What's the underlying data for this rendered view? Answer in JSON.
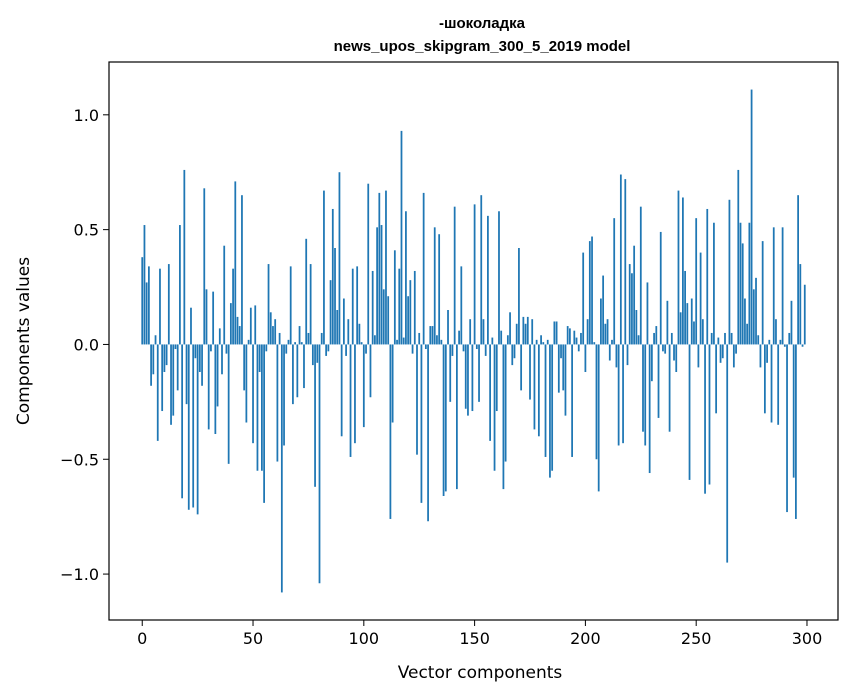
{
  "chart_data": {
    "type": "bar",
    "title": "-шоколадка",
    "subtitle": "news_upos_skipgram_300_5_2019 model",
    "xlabel": "Vector components",
    "ylabel": "Components values",
    "xlim": [
      -15,
      314
    ],
    "ylim": [
      -1.2,
      1.23
    ],
    "xticks": [
      0,
      50,
      100,
      150,
      200,
      250,
      300
    ],
    "xtick_labels": [
      "0",
      "50",
      "100",
      "150",
      "200",
      "250",
      "300"
    ],
    "yticks": [
      -1.0,
      -0.5,
      0.0,
      0.5,
      1.0
    ],
    "ytick_labels": [
      "−1.0",
      "−0.5",
      "0.0",
      "0.5",
      "1.0"
    ],
    "grid": false,
    "bar_color": "#1f77b4",
    "x": [
      0,
      1,
      2,
      3,
      4,
      5,
      6,
      7,
      8,
      9,
      10,
      11,
      12,
      13,
      14,
      15,
      16,
      17,
      18,
      19,
      20,
      21,
      22,
      23,
      24,
      25,
      26,
      27,
      28,
      29,
      30,
      31,
      32,
      33,
      34,
      35,
      36,
      37,
      38,
      39,
      40,
      41,
      42,
      43,
      44,
      45,
      46,
      47,
      48,
      49,
      50,
      51,
      52,
      53,
      54,
      55,
      56,
      57,
      58,
      59,
      60,
      61,
      62,
      63,
      64,
      65,
      66,
      67,
      68,
      69,
      70,
      71,
      72,
      73,
      74,
      75,
      76,
      77,
      78,
      79,
      80,
      81,
      82,
      83,
      84,
      85,
      86,
      87,
      88,
      89,
      90,
      91,
      92,
      93,
      94,
      95,
      96,
      97,
      98,
      99,
      100,
      101,
      102,
      103,
      104,
      105,
      106,
      107,
      108,
      109,
      110,
      111,
      112,
      113,
      114,
      115,
      116,
      117,
      118,
      119,
      120,
      121,
      122,
      123,
      124,
      125,
      126,
      127,
      128,
      129,
      130,
      131,
      132,
      133,
      134,
      135,
      136,
      137,
      138,
      139,
      140,
      141,
      142,
      143,
      144,
      145,
      146,
      147,
      148,
      149,
      150,
      151,
      152,
      153,
      154,
      155,
      156,
      157,
      158,
      159,
      160,
      161,
      162,
      163,
      164,
      165,
      166,
      167,
      168,
      169,
      170,
      171,
      172,
      173,
      174,
      175,
      176,
      177,
      178,
      179,
      180,
      181,
      182,
      183,
      184,
      185,
      186,
      187,
      188,
      189,
      190,
      191,
      192,
      193,
      194,
      195,
      196,
      197,
      198,
      199,
      200,
      201,
      202,
      203,
      204,
      205,
      206,
      207,
      208,
      209,
      210,
      211,
      212,
      213,
      214,
      215,
      216,
      217,
      218,
      219,
      220,
      221,
      222,
      223,
      224,
      225,
      226,
      227,
      228,
      229,
      230,
      231,
      232,
      233,
      234,
      235,
      236,
      237,
      238,
      239,
      240,
      241,
      242,
      243,
      244,
      245,
      246,
      247,
      248,
      249,
      250,
      251,
      252,
      253,
      254,
      255,
      256,
      257,
      258,
      259,
      260,
      261,
      262,
      263,
      264,
      265,
      266,
      267,
      268,
      269,
      270,
      271,
      272,
      273,
      274,
      275,
      276,
      277,
      278,
      279,
      280,
      281,
      282,
      283,
      284,
      285,
      286,
      287,
      288,
      289,
      290,
      291,
      292,
      293,
      294,
      295,
      296,
      297,
      298,
      299
    ],
    "values": [
      0.38,
      0.52,
      0.27,
      0.34,
      -0.18,
      -0.13,
      0.04,
      -0.42,
      0.33,
      -0.29,
      -0.12,
      -0.09,
      0.35,
      -0.35,
      -0.31,
      -0.02,
      -0.2,
      0.52,
      -0.67,
      0.76,
      -0.26,
      -0.72,
      0.16,
      -0.71,
      -0.06,
      -0.74,
      -0.12,
      -0.18,
      0.68,
      0.24,
      -0.37,
      -0.03,
      0.23,
      -0.39,
      -0.27,
      0.07,
      -0.13,
      0.43,
      -0.04,
      -0.52,
      0.18,
      0.33,
      0.71,
      0.12,
      0.08,
      0.65,
      -0.2,
      -0.34,
      0.02,
      0.16,
      -0.43,
      0.17,
      -0.55,
      -0.12,
      -0.55,
      -0.69,
      -0.03,
      0.35,
      0.14,
      0.08,
      0.11,
      -0.51,
      0.05,
      -1.08,
      -0.44,
      -0.04,
      0.02,
      0.34,
      -0.26,
      0.01,
      -0.23,
      0.08,
      0.01,
      -0.19,
      0.46,
      0.05,
      0.35,
      -0.09,
      -0.62,
      -0.08,
      -1.04,
      0.05,
      0.67,
      -0.05,
      -0.03,
      0.28,
      0.59,
      0.42,
      0.15,
      0.75,
      -0.4,
      0.2,
      -0.05,
      0.11,
      -0.49,
      0.33,
      -0.43,
      0.34,
      0.09,
      0.01,
      -0.36,
      -0.04,
      0.7,
      -0.23,
      0.32,
      0.04,
      0.51,
      0.66,
      0.52,
      0.24,
      0.67,
      0.21,
      -0.76,
      -0.34,
      0.41,
      0.02,
      0.33,
      0.93,
      0.03,
      0.58,
      0.21,
      0.28,
      -0.04,
      0.32,
      -0.48,
      0.05,
      -0.69,
      0.66,
      -0.02,
      -0.77,
      0.08,
      0.08,
      0.51,
      0.04,
      0.48,
      0.02,
      -0.66,
      -0.64,
      0.15,
      -0.25,
      -0.05,
      0.6,
      -0.63,
      0.06,
      0.34,
      -0.03,
      -0.28,
      -0.31,
      0.11,
      -0.29,
      0.61,
      -0.02,
      -0.25,
      0.65,
      0.11,
      -0.05,
      0.56,
      -0.42,
      0.03,
      -0.55,
      -0.29,
      0.58,
      0.06,
      -0.63,
      -0.51,
      0.04,
      0.14,
      -0.09,
      -0.06,
      0.09,
      0.42,
      -0.2,
      0.12,
      0.09,
      0.12,
      -0.24,
      0.11,
      -0.37,
      0.02,
      -0.4,
      0.04,
      0.01,
      -0.49,
      0.02,
      -0.58,
      -0.55,
      0.1,
      0.1,
      -0.21,
      -0.06,
      -0.2,
      -0.31,
      0.08,
      0.07,
      -0.49,
      0.06,
      0.03,
      -0.03,
      0.05,
      0.4,
      -0.12,
      0.11,
      0.45,
      0.47,
      0.01,
      -0.5,
      -0.64,
      0.2,
      0.3,
      0.09,
      0.11,
      -0.07,
      0.02,
      0.55,
      -0.1,
      -0.44,
      0.74,
      -0.43,
      0.72,
      -0.09,
      0.35,
      0.31,
      0.43,
      0.15,
      0.04,
      0.6,
      -0.38,
      -0.44,
      0.27,
      -0.56,
      -0.16,
      0.05,
      0.08,
      -0.32,
      0.49,
      -0.03,
      -0.04,
      0.19,
      -0.38,
      0.05,
      -0.07,
      -0.12,
      0.67,
      0.14,
      0.64,
      0.32,
      0.18,
      -0.59,
      0.2,
      0.1,
      0.55,
      -0.1,
      0.4,
      0.11,
      -0.65,
      0.59,
      -0.61,
      0.05,
      0.53,
      -0.3,
      0.03,
      -0.08,
      -0.06,
      0.05,
      -0.95,
      0.63,
      0.05,
      -0.1,
      -0.04,
      0.76,
      0.53,
      0.44,
      0.2,
      0.09,
      0.53,
      1.11,
      0.24,
      0.29,
      0.04,
      -0.1,
      0.45,
      -0.3,
      -0.08,
      0.02,
      -0.34,
      0.51,
      0.11,
      -0.35,
      0.02,
      0.51,
      -0.01,
      -0.73,
      0.05,
      0.19,
      -0.58,
      -0.76,
      0.65,
      0.35,
      -0.01,
      0.26
    ]
  }
}
